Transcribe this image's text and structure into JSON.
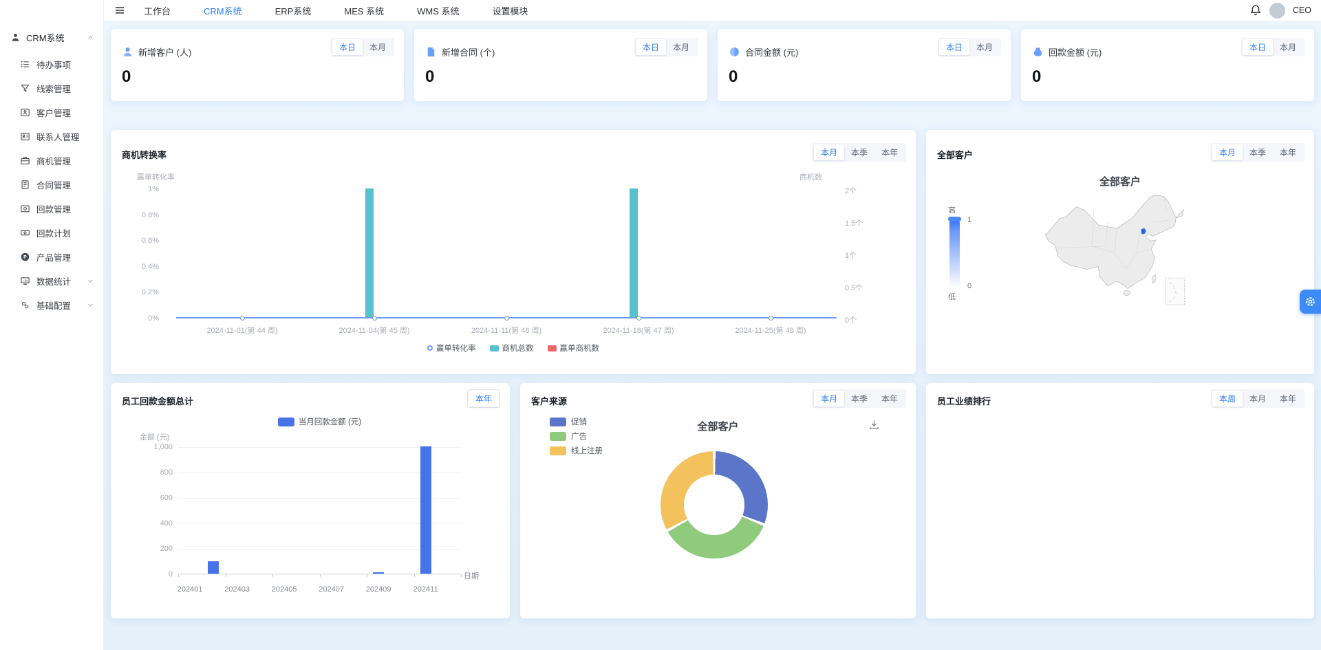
{
  "topnav": {
    "tabs": [
      {
        "label": "工作台",
        "active": false
      },
      {
        "label": "CRM系统",
        "active": true
      },
      {
        "label": "ERP系统",
        "active": false
      },
      {
        "label": "MES 系统",
        "active": false
      },
      {
        "label": "WMS 系统",
        "active": false
      },
      {
        "label": "设置模块",
        "active": false
      }
    ],
    "user": {
      "name": "CEO"
    }
  },
  "sidebar": {
    "section": {
      "label": "CRM系统"
    },
    "items": [
      {
        "label": "待办事项",
        "icon": "todo-list-icon"
      },
      {
        "label": "线索管理",
        "icon": "leads-icon"
      },
      {
        "label": "客户管理",
        "icon": "customer-icon"
      },
      {
        "label": "联系人管理",
        "icon": "contact-icon"
      },
      {
        "label": "商机管理",
        "icon": "opportunity-icon"
      },
      {
        "label": "合同管理",
        "icon": "contract-icon"
      },
      {
        "label": "回款管理",
        "icon": "payment-icon"
      },
      {
        "label": "回款计划",
        "icon": "payment-plan-icon"
      },
      {
        "label": "产品管理",
        "icon": "product-icon"
      },
      {
        "label": "数据统计",
        "icon": "statistics-icon",
        "expandable": true
      },
      {
        "label": "基础配置",
        "icon": "config-icon",
        "expandable": true
      }
    ]
  },
  "stat_cards": [
    {
      "title": "新增客户 (人)",
      "value": "0",
      "icon": "new-customer-icon",
      "toggles": [
        "本日",
        "本月"
      ],
      "active": "本日"
    },
    {
      "title": "新增合同 (个)",
      "value": "0",
      "icon": "new-contract-icon",
      "toggles": [
        "本日",
        "本月"
      ],
      "active": "本日"
    },
    {
      "title": "合同金额 (元)",
      "value": "0",
      "icon": "contract-amount-icon",
      "toggles": [
        "本日",
        "本月"
      ],
      "active": "本日"
    },
    {
      "title": "回款金额 (元)",
      "value": "0",
      "icon": "payment-amount-icon",
      "toggles": [
        "本日",
        "本月"
      ],
      "active": "本日"
    }
  ],
  "panels": {
    "conversion": {
      "title": "商机转换率",
      "toggles": [
        "本月",
        "本季",
        "本年"
      ],
      "active": "本月"
    },
    "map": {
      "title": "全部客户",
      "toggles": [
        "本月",
        "本季",
        "本年"
      ],
      "active": "本月"
    },
    "payment": {
      "title": "员工回款金额总计",
      "toggles": [
        "本年"
      ],
      "active": "本年"
    },
    "source": {
      "title": "客户来源",
      "toggles": [
        "本月",
        "本季",
        "本年"
      ],
      "active": "本月"
    },
    "ranking": {
      "title": "员工业绩排行",
      "toggles": [
        "本周",
        "本月",
        "本年"
      ],
      "active": "本周"
    }
  },
  "chart_data": [
    {
      "id": "conversion",
      "type": "bar",
      "title": "商机转换率",
      "categories": [
        "2024-11-01(第 44 周)",
        "2024-11-04(第 45 周)",
        "2024-11-11(第 46 周)",
        "2024-11-18(第 47 周)",
        "2024-11-25(第 48 周)"
      ],
      "series": [
        {
          "name": "赢单转化率",
          "type": "line",
          "yaxis": "left",
          "values": [
            0,
            0,
            0,
            0,
            0
          ],
          "color": "#6d9bf7"
        },
        {
          "name": "商机总数",
          "type": "bar",
          "yaxis": "right",
          "values": [
            0,
            2,
            0,
            2,
            0
          ],
          "color": "#57c1cd"
        },
        {
          "name": "赢单商机数",
          "type": "bar",
          "yaxis": "right",
          "values": [
            0,
            0,
            0,
            0,
            0
          ],
          "color": "#ee6666"
        }
      ],
      "left_axis": {
        "name": "赢单转化率",
        "ticks": [
          "1%",
          "0.8%",
          "0.6%",
          "0.4%",
          "0.2%",
          "0%"
        ],
        "min": 0,
        "max": 1
      },
      "right_axis": {
        "name": "商机数",
        "ticks": [
          "2个",
          "1.5个",
          "1个",
          "0.5个",
          "0个"
        ],
        "min": 0,
        "max": 2
      },
      "legend_position": "bottom"
    },
    {
      "id": "customer_map",
      "type": "heatmap",
      "map": "china",
      "title": "全部客户",
      "visual_map": {
        "high_label": "高",
        "low_label": "低",
        "max": 1,
        "min": 0
      },
      "regions": [
        {
          "name": "北京",
          "value": 1
        }
      ]
    },
    {
      "id": "employee_payment",
      "type": "bar",
      "title": "员工回款金额总计",
      "legend": [
        "当月回款金额 (元)"
      ],
      "ylabel": "金额 (元)",
      "xlabel": "日期",
      "categories": [
        "202401",
        "202402",
        "202403",
        "202404",
        "202405",
        "202406",
        "202407",
        "202408",
        "202409",
        "202410",
        "202411",
        "202412"
      ],
      "x_tick_labels": [
        "202401",
        "202403",
        "202405",
        "202407",
        "202409",
        "202411"
      ],
      "values": [
        0,
        100,
        0,
        0,
        0,
        0,
        0,
        0,
        10,
        0,
        1000,
        0
      ],
      "yticks": [
        "1,000",
        "800",
        "600",
        "400",
        "200",
        "0"
      ],
      "ylim": [
        0,
        1000
      ],
      "color": "#4673e8"
    },
    {
      "id": "customer_source",
      "type": "pie",
      "title": "全部客户",
      "series": [
        {
          "name": "促销",
          "value": 31,
          "color": "#5b76c8"
        },
        {
          "name": "广告",
          "value": 36,
          "color": "#8fca7d"
        },
        {
          "name": "线上注册",
          "value": 33,
          "color": "#f3c25c"
        }
      ]
    }
  ]
}
